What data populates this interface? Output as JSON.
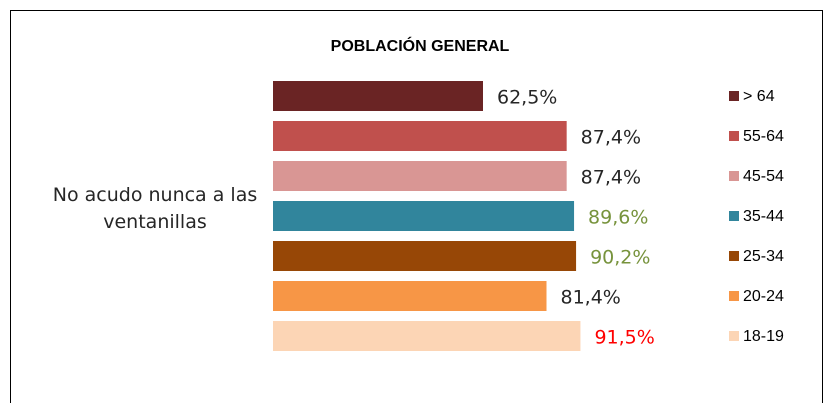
{
  "chart_data": {
    "type": "bar",
    "orientation": "horizontal",
    "title": "POBLACIÓN GENERAL",
    "categories": [
      "No acudo nunca a las ventanillas"
    ],
    "legend": "right",
    "series": [
      {
        "name": "> 64",
        "color": "#6a2424",
        "values": [
          62.5
        ],
        "value_labels": [
          "62,5%"
        ],
        "label_color": "#262626"
      },
      {
        "name": "55-64",
        "color": "#c0504d",
        "values": [
          87.4
        ],
        "value_labels": [
          "87,4%"
        ],
        "label_color": "#262626"
      },
      {
        "name": "45-54",
        "color": "#d99694",
        "values": [
          87.4
        ],
        "value_labels": [
          "87,4%"
        ],
        "label_color": "#262626"
      },
      {
        "name": "35-44",
        "color": "#31859c",
        "values": [
          89.6
        ],
        "value_labels": [
          "89,6%"
        ],
        "label_color": "#77933c"
      },
      {
        "name": "25-34",
        "color": "#974706",
        "values": [
          90.2
        ],
        "value_labels": [
          "90,2%"
        ],
        "label_color": "#77933c"
      },
      {
        "name": "20-24",
        "color": "#f79646",
        "values": [
          81.4
        ],
        "value_labels": [
          "81,4%"
        ],
        "label_color": "#262626"
      },
      {
        "name": "18-19",
        "color": "#fcd5b5",
        "values": [
          91.5
        ],
        "value_labels": [
          "91,5%"
        ],
        "label_color": "#ff0000"
      }
    ]
  }
}
